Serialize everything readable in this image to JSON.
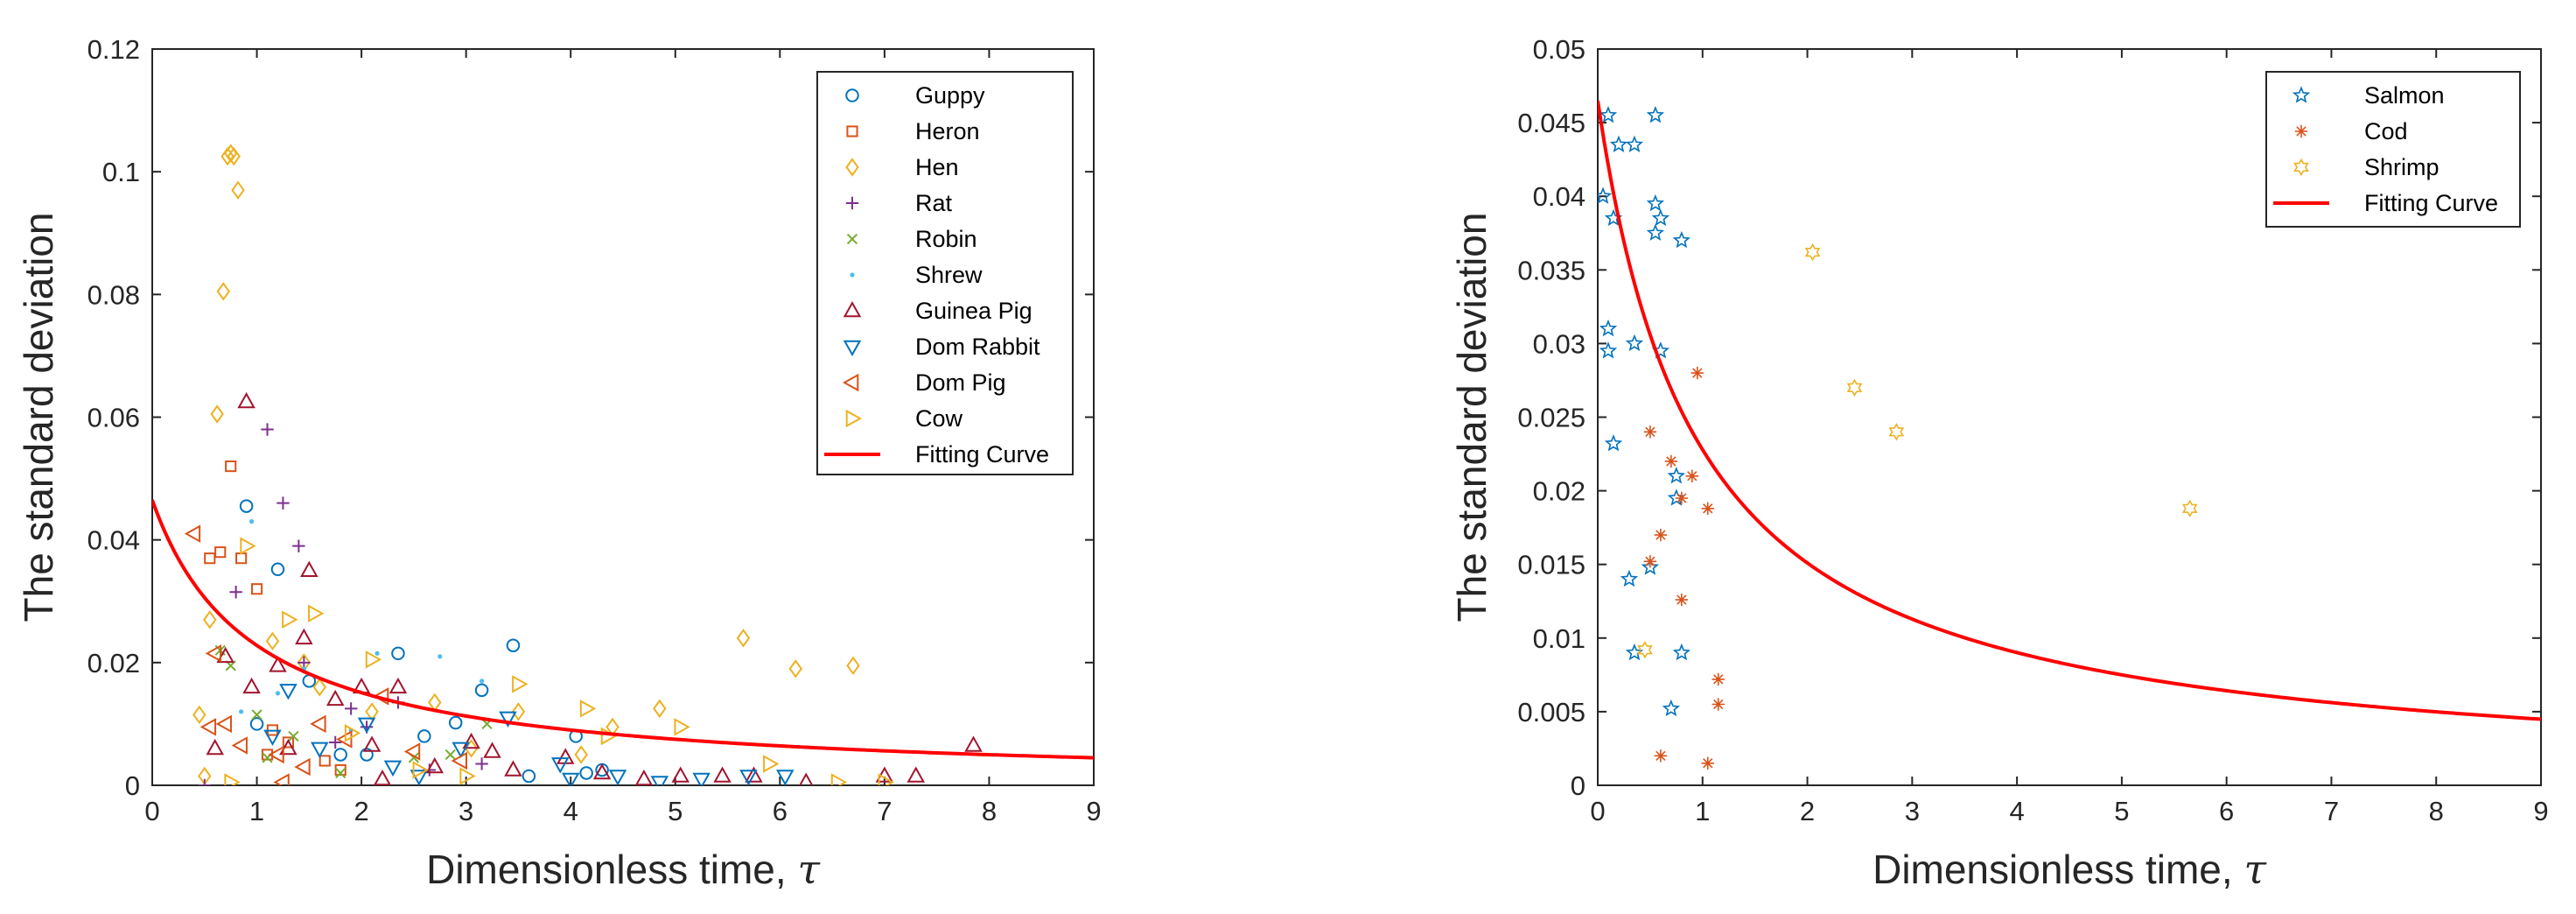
{
  "chart_data": [
    {
      "type": "scatter",
      "xlabel": "Dimensionless time, ",
      "xlabel_symbol": "τ",
      "ylabel": "The standard deviation",
      "xlim": [
        0,
        9
      ],
      "ylim": [
        0,
        0.12
      ],
      "xticks": [
        "0",
        "1",
        "2",
        "3",
        "4",
        "5",
        "6",
        "7",
        "8",
        "9"
      ],
      "yticks": [
        "0",
        "0.02",
        "0.04",
        "0.06",
        "0.08",
        "0.1",
        "0.12"
      ],
      "legend_position": "top-right",
      "fit_curve": {
        "name": "Fitting Curve",
        "color": "#ff0000",
        "model": "a/(1+b*x)",
        "a": 0.0465,
        "b": 1.04
      },
      "series": [
        {
          "name": "Guppy",
          "marker": "circle",
          "color": "#0072bd",
          "points": [
            [
              0.9,
              0.0455
            ],
            [
              1.2,
              0.0352
            ],
            [
              1.5,
              0.017
            ],
            [
              2.35,
              0.0215
            ],
            [
              3.45,
              0.0228
            ],
            [
              3.15,
              0.0155
            ],
            [
              2.9,
              0.0102
            ],
            [
              2.6,
              0.008
            ],
            [
              1.8,
              0.005
            ],
            [
              4.05,
              0.008
            ],
            [
              4.3,
              0.0025
            ],
            [
              4.15,
              0.002
            ],
            [
              3.6,
              0.0015
            ],
            [
              2.05,
              0.005
            ],
            [
              1.0,
              0.01
            ]
          ]
        },
        {
          "name": "Heron",
          "marker": "square",
          "color": "#d95319",
          "points": [
            [
              0.75,
              0.052
            ],
            [
              0.55,
              0.037
            ],
            [
              0.65,
              0.038
            ],
            [
              0.85,
              0.037
            ],
            [
              1.0,
              0.032
            ],
            [
              1.1,
              0.005
            ],
            [
              1.3,
              0.007
            ],
            [
              1.65,
              0.004
            ],
            [
              1.8,
              0.0025
            ],
            [
              1.15,
              0.009
            ]
          ]
        },
        {
          "name": "Hen",
          "marker": "diamond",
          "color": "#edb120",
          "points": [
            [
              0.72,
              0.1025
            ],
            [
              0.75,
              0.103
            ],
            [
              0.78,
              0.1025
            ],
            [
              0.82,
              0.097
            ],
            [
              0.68,
              0.0805
            ],
            [
              0.62,
              0.0605
            ],
            [
              0.45,
              0.0115
            ],
            [
              0.55,
              0.027
            ],
            [
              1.15,
              0.0235
            ],
            [
              1.45,
              0.02
            ],
            [
              1.6,
              0.016
            ],
            [
              2.1,
              0.012
            ],
            [
              2.7,
              0.0135
            ],
            [
              3.5,
              0.012
            ],
            [
              4.1,
              0.005
            ],
            [
              4.4,
              0.0095
            ],
            [
              4.85,
              0.0125
            ],
            [
              5.65,
              0.024
            ],
            [
              6.15,
              0.019
            ],
            [
              6.7,
              0.0195
            ],
            [
              3.05,
              0.006
            ],
            [
              0.5,
              0.0015
            ]
          ]
        },
        {
          "name": "Rat",
          "marker": "plus",
          "color": "#7e2f8e",
          "points": [
            [
              1.1,
              0.058
            ],
            [
              1.25,
              0.046
            ],
            [
              1.4,
              0.039
            ],
            [
              0.8,
              0.0315
            ],
            [
              1.45,
              0.02
            ],
            [
              1.9,
              0.0125
            ],
            [
              2.35,
              0.0135
            ],
            [
              2.05,
              0.0095
            ],
            [
              3.15,
              0.0035
            ],
            [
              2.65,
              0.0025
            ],
            [
              1.75,
              0.007
            ],
            [
              0.5,
              0.0
            ]
          ]
        },
        {
          "name": "Robin",
          "marker": "cross",
          "color": "#77ac30",
          "points": [
            [
              0.65,
              0.022
            ],
            [
              1.0,
              0.0115
            ],
            [
              1.35,
              0.008
            ],
            [
              1.8,
              0.002
            ],
            [
              2.5,
              0.0045
            ],
            [
              2.85,
              0.005
            ],
            [
              3.2,
              0.01
            ],
            [
              1.1,
              0.0045
            ],
            [
              0.75,
              0.0195
            ]
          ]
        },
        {
          "name": "Shrew",
          "marker": "dot",
          "color": "#4dbeee",
          "points": [
            [
              0.95,
              0.043
            ],
            [
              1.45,
              0.019
            ],
            [
              2.15,
              0.0215
            ],
            [
              2.75,
              0.021
            ],
            [
              3.15,
              0.017
            ],
            [
              1.2,
              0.015
            ],
            [
              1.9,
              0.009
            ],
            [
              0.85,
              0.012
            ]
          ]
        },
        {
          "name": "Guinea Pig",
          "marker": "triangle-up",
          "color": "#a2142f",
          "points": [
            [
              0.9,
              0.0625
            ],
            [
              1.5,
              0.035
            ],
            [
              1.45,
              0.024
            ],
            [
              1.2,
              0.0195
            ],
            [
              0.95,
              0.016
            ],
            [
              0.7,
              0.021
            ],
            [
              2.0,
              0.016
            ],
            [
              2.35,
              0.016
            ],
            [
              3.05,
              0.007
            ],
            [
              3.25,
              0.0055
            ],
            [
              3.95,
              0.0045
            ],
            [
              4.3,
              0.002
            ],
            [
              2.7,
              0.003
            ],
            [
              2.1,
              0.0065
            ],
            [
              1.3,
              0.006
            ],
            [
              1.75,
              0.014
            ],
            [
              3.45,
              0.0025
            ],
            [
              4.7,
              0.001
            ],
            [
              5.05,
              0.0015
            ],
            [
              5.45,
              0.0015
            ],
            [
              5.75,
              0.0015
            ],
            [
              6.25,
              0.0005
            ],
            [
              7.0,
              0.0015
            ],
            [
              7.3,
              0.0015
            ],
            [
              7.85,
              0.0065
            ],
            [
              2.2,
              0.001
            ],
            [
              0.6,
              0.006
            ]
          ]
        },
        {
          "name": "Dom Rabbit",
          "marker": "triangle-down",
          "color": "#0072bd",
          "points": [
            [
              1.3,
              0.0155
            ],
            [
              1.15,
              0.008
            ],
            [
              1.6,
              0.006
            ],
            [
              2.05,
              0.01
            ],
            [
              2.55,
              0.0015
            ],
            [
              2.95,
              0.006
            ],
            [
              3.4,
              0.011
            ],
            [
              3.9,
              0.0035
            ],
            [
              4.45,
              0.0015
            ],
            [
              4.85,
              0.0005
            ],
            [
              5.25,
              0.001
            ],
            [
              5.7,
              0.0015
            ],
            [
              6.05,
              0.0015
            ],
            [
              4.0,
              0.001
            ],
            [
              2.3,
              0.003
            ]
          ]
        },
        {
          "name": "Dom Pig",
          "marker": "triangle-left",
          "color": "#d95319",
          "points": [
            [
              0.4,
              0.041
            ],
            [
              0.6,
              0.0215
            ],
            [
              0.55,
              0.0095
            ],
            [
              0.85,
              0.0065
            ],
            [
              1.2,
              0.005
            ],
            [
              1.45,
              0.003
            ],
            [
              1.85,
              0.0075
            ],
            [
              2.2,
              0.0145
            ],
            [
              2.5,
              0.0055
            ],
            [
              2.95,
              0.004
            ],
            [
              1.25,
              0.0005
            ],
            [
              0.7,
              0.01
            ],
            [
              1.6,
              0.01
            ]
          ]
        },
        {
          "name": "Cow",
          "marker": "triangle-right",
          "color": "#edb120",
          "points": [
            [
              0.9,
              0.039
            ],
            [
              1.3,
              0.027
            ],
            [
              1.55,
              0.028
            ],
            [
              2.1,
              0.0205
            ],
            [
              3.5,
              0.0165
            ],
            [
              4.15,
              0.0125
            ],
            [
              4.35,
              0.008
            ],
            [
              5.05,
              0.0095
            ],
            [
              5.9,
              0.0035
            ],
            [
              6.55,
              0.0005
            ],
            [
              7.0,
              0.0005
            ],
            [
              1.9,
              0.0085
            ],
            [
              2.55,
              0.0025
            ],
            [
              3.0,
              0.0015
            ],
            [
              0.75,
              0.0005
            ]
          ]
        }
      ]
    },
    {
      "type": "scatter",
      "xlabel": "Dimensionless time, ",
      "xlabel_symbol": "τ",
      "ylabel": "The standard deviation",
      "xlim": [
        0,
        9
      ],
      "ylim": [
        0,
        0.05
      ],
      "xticks": [
        "0",
        "1",
        "2",
        "3",
        "4",
        "5",
        "6",
        "7",
        "8",
        "9"
      ],
      "yticks": [
        "0",
        "0.005",
        "0.01",
        "0.015",
        "0.02",
        "0.025",
        "0.03",
        "0.035",
        "0.04",
        "0.045",
        "0.05"
      ],
      "legend_position": "top-right",
      "fit_curve": {
        "name": "Fitting Curve",
        "color": "#ff0000",
        "model": "a/(1+b*x)",
        "a": 0.0465,
        "b": 1.04
      },
      "series": [
        {
          "name": "Salmon",
          "marker": "pentagram",
          "color": "#0072bd",
          "points": [
            [
              0.1,
              0.0455
            ],
            [
              0.55,
              0.0455
            ],
            [
              0.2,
              0.0435
            ],
            [
              0.35,
              0.0435
            ],
            [
              0.05,
              0.04
            ],
            [
              0.15,
              0.0385
            ],
            [
              0.55,
              0.0395
            ],
            [
              0.6,
              0.0385
            ],
            [
              0.55,
              0.0375
            ],
            [
              0.8,
              0.037
            ],
            [
              0.1,
              0.031
            ],
            [
              0.35,
              0.03
            ],
            [
              0.1,
              0.0295
            ],
            [
              0.6,
              0.0295
            ],
            [
              0.15,
              0.0232
            ],
            [
              0.75,
              0.021
            ],
            [
              0.75,
              0.0195
            ],
            [
              0.5,
              0.0148
            ],
            [
              0.3,
              0.014
            ],
            [
              0.35,
              0.009
            ],
            [
              0.8,
              0.009
            ],
            [
              0.7,
              0.0052
            ]
          ]
        },
        {
          "name": "Cod",
          "marker": "asterisk",
          "color": "#d95319",
          "points": [
            [
              0.95,
              0.028
            ],
            [
              0.5,
              0.024
            ],
            [
              0.7,
              0.022
            ],
            [
              0.9,
              0.021
            ],
            [
              0.8,
              0.0195
            ],
            [
              1.05,
              0.0188
            ],
            [
              0.6,
              0.017
            ],
            [
              0.5,
              0.0152
            ],
            [
              0.8,
              0.0126
            ],
            [
              1.15,
              0.0072
            ],
            [
              1.15,
              0.0055
            ],
            [
              0.6,
              0.002
            ],
            [
              1.05,
              0.0015
            ]
          ]
        },
        {
          "name": "Shrimp",
          "marker": "hexagram",
          "color": "#edb120",
          "points": [
            [
              2.05,
              0.0362
            ],
            [
              2.45,
              0.027
            ],
            [
              2.85,
              0.024
            ],
            [
              5.65,
              0.0188
            ],
            [
              0.45,
              0.0092
            ]
          ]
        }
      ]
    }
  ]
}
